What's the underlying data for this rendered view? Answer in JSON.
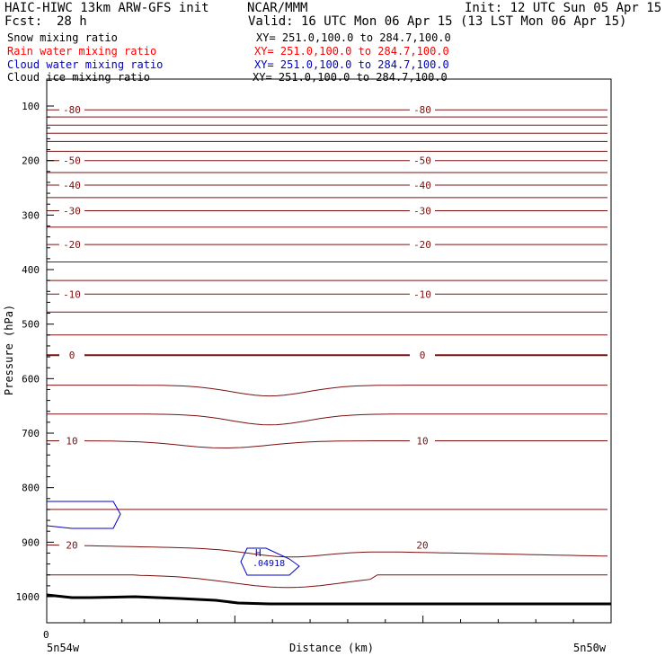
{
  "header": {
    "title": "HAIC-HIWC 13km ARW-GFS init",
    "org": "NCAR/MMM",
    "init": "Init: 12 UTC Sun 05 Apr 15",
    "fcst_label": "Fcst:",
    "fcst_value": "28 h",
    "valid": "Valid: 16 UTC Mon 06 Apr 15 (13 LST Mon 06 Apr 15)"
  },
  "legend": [
    {
      "name": "Snow mixing ratio",
      "xy": "XY= 251.0,100.0 to 284.7,100.0",
      "color": "#000000"
    },
    {
      "name": "Rain water mixing ratio",
      "xy": "XY= 251.0,100.0 to 284.7,100.0",
      "color": "#ff0000"
    },
    {
      "name": "Cloud water mixing ratio",
      "xy": "XY= 251.0,100.0 to 284.7,100.0",
      "color": "#0000cc"
    },
    {
      "name": "Cloud ice mixing ratio",
      "xy": "XY= 251.0,100.0 to 284.7,100.0",
      "color": "#000000"
    }
  ],
  "chart_data": {
    "type": "line",
    "xlabel": "Distance (km)",
    "ylabel": "Pressure (hPa)",
    "x_left_label": "5n54w",
    "x_right_label": "5n50w",
    "x_origin_label": "0",
    "y_ticks": [
      100,
      200,
      300,
      400,
      500,
      600,
      700,
      800,
      900,
      1000
    ],
    "ylim": [
      1050,
      80
    ],
    "isotherm_color": "#7a1010",
    "isotherms": [
      {
        "pressure": 107,
        "label": "-80"
      },
      {
        "pressure": 120
      },
      {
        "pressure": 135
      },
      {
        "pressure": 150
      },
      {
        "pressure": 165
      },
      {
        "pressure": 183
      },
      {
        "pressure": 200,
        "label": "-50"
      },
      {
        "pressure": 222
      },
      {
        "pressure": 245,
        "label": "-40"
      },
      {
        "pressure": 268
      },
      {
        "pressure": 292,
        "label": "-30"
      },
      {
        "pressure": 322
      },
      {
        "pressure": 354,
        "label": "-20"
      },
      {
        "pressure": 386
      },
      {
        "pressure": 420
      },
      {
        "pressure": 445,
        "label": "-10"
      },
      {
        "pressure": 478
      },
      {
        "pressure": 520
      },
      {
        "pressure": 557,
        "label": "0"
      },
      {
        "pressure": 612
      },
      {
        "pressure": 665
      },
      {
        "pressure": 714,
        "label": "10"
      },
      {
        "pressure": 840
      },
      {
        "pressure": 905,
        "label": "20"
      },
      {
        "pressure": 960
      }
    ],
    "high_label": "H",
    "high_value": ".04918"
  }
}
